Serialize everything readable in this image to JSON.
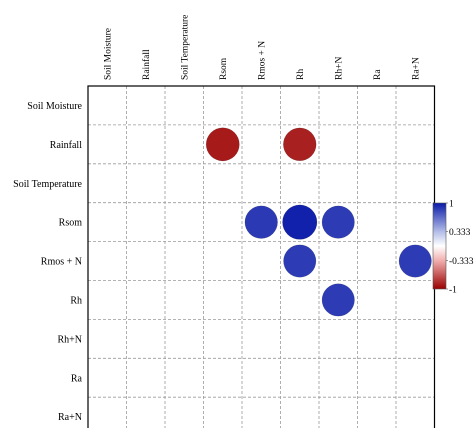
{
  "chart_data": {
    "type": "heatmap",
    "subtype": "correlation-circle-plot",
    "title": "",
    "xlabel": "",
    "ylabel": "",
    "columns": [
      "Soil Moisture",
      "Rainfall",
      "Soil Temperature",
      "Rsom",
      "Rmos + N",
      "Rh",
      "Rh+N",
      "Ra",
      "Ra+N"
    ],
    "rows": [
      "Soil Moisture",
      "Rainfall",
      "Soil Temperature",
      "Rsom",
      "Rmos + N",
      "Rh",
      "Rh+N",
      "Ra",
      "Ra+N"
    ],
    "cells": [
      {
        "row": "Rainfall",
        "col": "Rsom",
        "value": -0.9
      },
      {
        "row": "Rainfall",
        "col": "Rh",
        "value": -0.88
      },
      {
        "row": "Rsom",
        "col": "Rmos + N",
        "value": 0.87
      },
      {
        "row": "Rsom",
        "col": "Rh",
        "value": 0.97
      },
      {
        "row": "Rsom",
        "col": "Rh+N",
        "value": 0.86
      },
      {
        "row": "Rmos + N",
        "col": "Rh",
        "value": 0.86
      },
      {
        "row": "Rmos + N",
        "col": "Ra+N",
        "value": 0.86
      },
      {
        "row": "Rh",
        "col": "Rh+N",
        "value": 0.86
      }
    ],
    "color_scale": {
      "min": -1,
      "max": 1,
      "tick_labels": [
        "1",
        "0.333",
        "-0.333",
        "-1"
      ],
      "tick_values": [
        1,
        0.333,
        -0.333,
        -1
      ],
      "stops": [
        {
          "value": 1,
          "color": "#0a1aa8"
        },
        {
          "value": 0.333,
          "color": "#b3bde8"
        },
        {
          "value": 0,
          "color": "#ffffff"
        },
        {
          "value": -0.333,
          "color": "#f2b0b0"
        },
        {
          "value": -1,
          "color": "#990000"
        }
      ]
    },
    "legend_position": "right",
    "grid": true
  }
}
